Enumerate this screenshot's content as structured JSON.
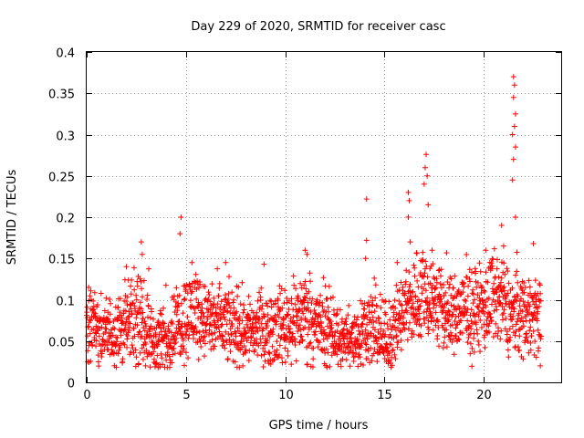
{
  "chart_data": {
    "type": "scatter",
    "title": "Day 229 of 2020, SRMTID for receiver casc",
    "xlabel": "GPS time / hours",
    "ylabel": "SRMTID / TECUs",
    "xlim": [
      0,
      23.9
    ],
    "ylim": [
      0,
      0.4
    ],
    "x_ticks": [
      0,
      5,
      10,
      15,
      20
    ],
    "y_ticks": [
      0,
      0.05,
      0.1,
      0.15,
      0.2,
      0.25,
      0.3,
      0.35,
      0.4
    ],
    "x_tick_labels": [
      "0",
      "5",
      "10",
      "15",
      "20"
    ],
    "y_tick_labels": [
      "0",
      "0.05",
      "0.1",
      "0.15",
      "0.2",
      "0.25",
      "0.3",
      "0.35",
      "0.4"
    ],
    "grid": true,
    "marker": "plus",
    "color": "#ff0000",
    "series_trend": [
      {
        "x": 0.0,
        "y": 0.07
      },
      {
        "x": 0.5,
        "y": 0.065
      },
      {
        "x": 1.0,
        "y": 0.06
      },
      {
        "x": 1.5,
        "y": 0.065
      },
      {
        "x": 2.0,
        "y": 0.07
      },
      {
        "x": 2.5,
        "y": 0.075
      },
      {
        "x": 3.0,
        "y": 0.065
      },
      {
        "x": 3.5,
        "y": 0.045
      },
      {
        "x": 4.0,
        "y": 0.05
      },
      {
        "x": 4.5,
        "y": 0.07
      },
      {
        "x": 5.0,
        "y": 0.08
      },
      {
        "x": 5.5,
        "y": 0.09
      },
      {
        "x": 6.0,
        "y": 0.075
      },
      {
        "x": 7.0,
        "y": 0.07
      },
      {
        "x": 8.0,
        "y": 0.065
      },
      {
        "x": 9.0,
        "y": 0.065
      },
      {
        "x": 10.0,
        "y": 0.07
      },
      {
        "x": 10.5,
        "y": 0.075
      },
      {
        "x": 11.0,
        "y": 0.085
      },
      {
        "x": 11.5,
        "y": 0.07
      },
      {
        "x": 12.0,
        "y": 0.065
      },
      {
        "x": 12.5,
        "y": 0.06
      },
      {
        "x": 13.0,
        "y": 0.05
      },
      {
        "x": 13.5,
        "y": 0.055
      },
      {
        "x": 14.0,
        "y": 0.07
      },
      {
        "x": 14.5,
        "y": 0.065
      },
      {
        "x": 15.0,
        "y": 0.05
      },
      {
        "x": 15.5,
        "y": 0.065
      },
      {
        "x": 16.0,
        "y": 0.085
      },
      {
        "x": 16.5,
        "y": 0.1
      },
      {
        "x": 17.0,
        "y": 0.11
      },
      {
        "x": 17.5,
        "y": 0.1
      },
      {
        "x": 18.0,
        "y": 0.085
      },
      {
        "x": 18.5,
        "y": 0.08
      },
      {
        "x": 19.0,
        "y": 0.085
      },
      {
        "x": 19.5,
        "y": 0.085
      },
      {
        "x": 20.0,
        "y": 0.09
      },
      {
        "x": 20.5,
        "y": 0.1
      },
      {
        "x": 21.0,
        "y": 0.095
      },
      {
        "x": 21.5,
        "y": 0.08
      },
      {
        "x": 22.0,
        "y": 0.085
      },
      {
        "x": 22.5,
        "y": 0.08
      },
      {
        "x": 22.9,
        "y": 0.08
      }
    ],
    "spikes": [
      {
        "x": 0.1,
        "y": 0.115
      },
      {
        "x": 2.0,
        "y": 0.14
      },
      {
        "x": 2.75,
        "y": 0.17
      },
      {
        "x": 2.8,
        "y": 0.155
      },
      {
        "x": 4.75,
        "y": 0.2
      },
      {
        "x": 4.7,
        "y": 0.18
      },
      {
        "x": 5.3,
        "y": 0.145
      },
      {
        "x": 7.0,
        "y": 0.145
      },
      {
        "x": 11.0,
        "y": 0.16
      },
      {
        "x": 11.1,
        "y": 0.155
      },
      {
        "x": 14.1,
        "y": 0.222
      },
      {
        "x": 14.1,
        "y": 0.172
      },
      {
        "x": 14.05,
        "y": 0.15
      },
      {
        "x": 16.2,
        "y": 0.23
      },
      {
        "x": 16.25,
        "y": 0.22
      },
      {
        "x": 16.2,
        "y": 0.2
      },
      {
        "x": 16.3,
        "y": 0.17
      },
      {
        "x": 17.1,
        "y": 0.276
      },
      {
        "x": 17.05,
        "y": 0.26
      },
      {
        "x": 17.15,
        "y": 0.25
      },
      {
        "x": 17.0,
        "y": 0.24
      },
      {
        "x": 17.2,
        "y": 0.215
      },
      {
        "x": 17.4,
        "y": 0.16
      },
      {
        "x": 20.1,
        "y": 0.16
      },
      {
        "x": 20.9,
        "y": 0.19
      },
      {
        "x": 21.0,
        "y": 0.165
      },
      {
        "x": 21.5,
        "y": 0.37
      },
      {
        "x": 21.55,
        "y": 0.36
      },
      {
        "x": 21.5,
        "y": 0.345
      },
      {
        "x": 21.6,
        "y": 0.325
      },
      {
        "x": 21.55,
        "y": 0.31
      },
      {
        "x": 21.45,
        "y": 0.3
      },
      {
        "x": 21.6,
        "y": 0.285
      },
      {
        "x": 21.5,
        "y": 0.27
      },
      {
        "x": 21.45,
        "y": 0.245
      },
      {
        "x": 21.6,
        "y": 0.2
      },
      {
        "x": 22.5,
        "y": 0.168
      },
      {
        "x": 22.85,
        "y": 0.02
      },
      {
        "x": 0.05,
        "y": 0.025
      },
      {
        "x": 3.6,
        "y": 0.018
      }
    ]
  }
}
